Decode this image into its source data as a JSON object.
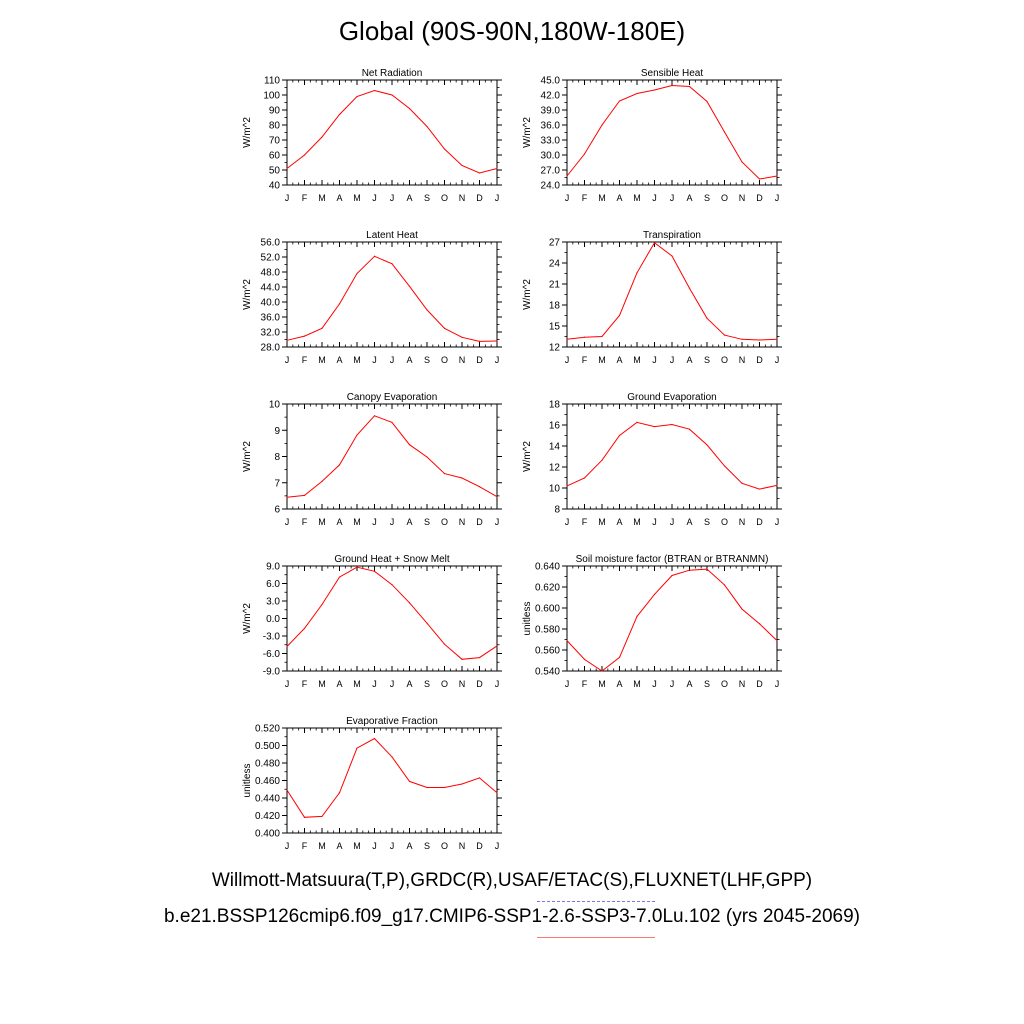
{
  "title": "Global (90S-90N,180W-180E)",
  "footer": {
    "observations": "Willmott-Matsuura(T,P),GRDC(R),USAF/ETAC(S),FLUXNET(LHF,GPP)",
    "case": "b.e21.BSSP126cmip6.f09_g17.CMIP6-SSP1-2.6-SSP3-7.0Lu.102 (yrs 2045-2069)"
  },
  "colors": {
    "series": "#ff0000",
    "axes": "#000000",
    "background": "#ffffff"
  },
  "chart_data": [
    {
      "type": "line",
      "title": "Net Radiation",
      "ylabel": "W/m^2",
      "categories": [
        "J",
        "F",
        "M",
        "A",
        "M",
        "J",
        "J",
        "A",
        "S",
        "O",
        "N",
        "D",
        "J"
      ],
      "ylim": [
        40,
        110
      ],
      "yticks": [
        "40",
        "50",
        "60",
        "70",
        "80",
        "90",
        "100",
        "110"
      ],
      "values": [
        51,
        60,
        72,
        87,
        99,
        103,
        100,
        91,
        79,
        64,
        53,
        48,
        51
      ]
    },
    {
      "type": "line",
      "title": "Sensible Heat",
      "ylabel": "W/m^2",
      "categories": [
        "J",
        "F",
        "M",
        "A",
        "M",
        "J",
        "J",
        "A",
        "S",
        "O",
        "N",
        "D",
        "J"
      ],
      "ylim": [
        24,
        45
      ],
      "yticks": [
        "24.0",
        "27.0",
        "30.0",
        "33.0",
        "36.0",
        "39.0",
        "42.0",
        "45.0"
      ],
      "values": [
        25.8,
        30.2,
        36.0,
        40.8,
        42.3,
        43.0,
        43.9,
        43.7,
        40.7,
        34.6,
        28.6,
        25.2,
        25.8
      ]
    },
    {
      "type": "line",
      "title": "Latent Heat",
      "ylabel": "W/m^2",
      "categories": [
        "J",
        "F",
        "M",
        "A",
        "M",
        "J",
        "J",
        "A",
        "S",
        "O",
        "N",
        "D",
        "J"
      ],
      "ylim": [
        28,
        56
      ],
      "yticks": [
        "28.0",
        "32.0",
        "36.0",
        "40.0",
        "44.0",
        "48.0",
        "52.0",
        "56.0"
      ],
      "values": [
        29.8,
        30.9,
        33.0,
        39.5,
        47.6,
        52.2,
        50.2,
        44.2,
        37.9,
        33.0,
        30.6,
        29.5,
        29.6
      ]
    },
    {
      "type": "line",
      "title": "Transpiration",
      "ylabel": "W/m^2",
      "categories": [
        "J",
        "F",
        "M",
        "A",
        "M",
        "J",
        "J",
        "A",
        "S",
        "O",
        "N",
        "D",
        "J"
      ],
      "ylim": [
        12,
        27
      ],
      "yticks": [
        "12",
        "15",
        "18",
        "21",
        "24",
        "27"
      ],
      "values": [
        13.1,
        13.4,
        13.5,
        16.5,
        22.6,
        26.9,
        25.0,
        20.4,
        16.1,
        13.7,
        13.1,
        13.0,
        13.1
      ]
    },
    {
      "type": "line",
      "title": "Canopy Evaporation",
      "ylabel": "W/m^2",
      "categories": [
        "J",
        "F",
        "M",
        "A",
        "M",
        "J",
        "J",
        "A",
        "S",
        "O",
        "N",
        "D",
        "J"
      ],
      "ylim": [
        6,
        10
      ],
      "yticks": [
        "6",
        "7",
        "8",
        "9",
        "10"
      ],
      "values": [
        6.45,
        6.52,
        7.05,
        7.68,
        8.82,
        9.55,
        9.3,
        8.45,
        7.98,
        7.35,
        7.18,
        6.85,
        6.47
      ]
    },
    {
      "type": "line",
      "title": "Ground Evaporation",
      "ylabel": "W/m^2",
      "categories": [
        "J",
        "F",
        "M",
        "A",
        "M",
        "J",
        "J",
        "A",
        "S",
        "O",
        "N",
        "D",
        "J"
      ],
      "ylim": [
        8,
        18
      ],
      "yticks": [
        "8",
        "10",
        "12",
        "14",
        "16",
        "18"
      ],
      "values": [
        10.2,
        10.95,
        12.65,
        15.0,
        16.25,
        15.85,
        16.05,
        15.6,
        14.1,
        12.1,
        10.45,
        9.9,
        10.25
      ]
    },
    {
      "type": "line",
      "title": "Ground Heat + Snow Melt",
      "ylabel": "W/m^2",
      "categories": [
        "J",
        "F",
        "M",
        "A",
        "M",
        "J",
        "J",
        "A",
        "S",
        "O",
        "N",
        "D",
        "J"
      ],
      "ylim": [
        -9,
        9
      ],
      "yticks": [
        "-9.0",
        "-6.0",
        "-3.0",
        "0.0",
        "3.0",
        "6.0",
        "9.0"
      ],
      "values": [
        -4.8,
        -1.7,
        2.4,
        7.1,
        8.8,
        8.1,
        5.8,
        2.7,
        -0.8,
        -4.4,
        -7.0,
        -6.7,
        -4.7
      ]
    },
    {
      "type": "line",
      "title": "Soil moisture factor (BTRAN or BTRANMN)",
      "ylabel": "unitless",
      "categories": [
        "J",
        "F",
        "M",
        "A",
        "M",
        "J",
        "J",
        "A",
        "S",
        "O",
        "N",
        "D",
        "J"
      ],
      "ylim": [
        0.54,
        0.64
      ],
      "yticks": [
        "0.540",
        "0.560",
        "0.580",
        "0.600",
        "0.620",
        "0.640"
      ],
      "values": [
        0.569,
        0.551,
        0.54,
        0.553,
        0.592,
        0.613,
        0.631,
        0.636,
        0.637,
        0.622,
        0.599,
        0.585,
        0.569
      ]
    },
    {
      "type": "line",
      "title": "Evaporative Fraction",
      "ylabel": "unitless",
      "categories": [
        "J",
        "F",
        "M",
        "A",
        "M",
        "J",
        "J",
        "A",
        "S",
        "O",
        "N",
        "D",
        "J"
      ],
      "ylim": [
        0.4,
        0.52
      ],
      "yticks": [
        "0.400",
        "0.420",
        "0.440",
        "0.460",
        "0.480",
        "0.500",
        "0.520"
      ],
      "values": [
        0.449,
        0.418,
        0.419,
        0.446,
        0.497,
        0.508,
        0.487,
        0.459,
        0.452,
        0.452,
        0.456,
        0.463,
        0.446
      ]
    }
  ]
}
